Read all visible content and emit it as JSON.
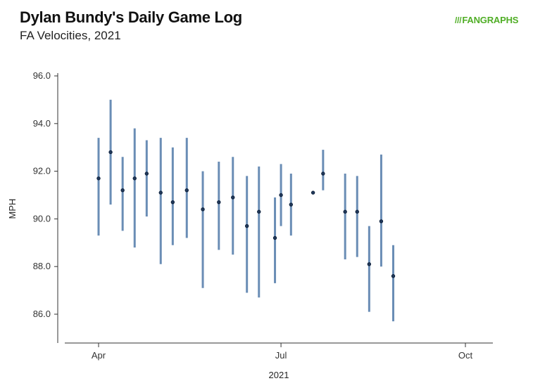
{
  "title": "Dylan Bundy's Daily Game Log",
  "subtitle": "FA Velocities, 2021",
  "brand": {
    "mark": "///",
    "name": "FANGRAPHS",
    "color": "#50ae26"
  },
  "chart_data": {
    "type": "error-bar",
    "ylabel": "MPH",
    "xlabel": "2021",
    "ylim": [
      85,
      96
    ],
    "yticks": [
      "96.0",
      "94.0",
      "92.0",
      "90.0",
      "88.0",
      "86.0"
    ],
    "ytick_values": [
      96,
      94,
      92,
      90,
      88,
      86
    ],
    "xlim": [
      "2021-03-25",
      "2021-10-05"
    ],
    "xticks": [
      {
        "label": "Apr",
        "date": "2021-04-01"
      },
      {
        "label": "Jul",
        "date": "2021-07-01"
      },
      {
        "label": "Oct",
        "date": "2021-10-01"
      }
    ],
    "grid": false,
    "colors": {
      "range": "#6a8db5",
      "point": "#0c1f3a",
      "axis": "#333333"
    },
    "points": [
      {
        "date": "2021-04-01",
        "avg": 91.7,
        "min": 89.3,
        "max": 93.4
      },
      {
        "date": "2021-04-07",
        "avg": 92.8,
        "min": 90.6,
        "max": 95.0
      },
      {
        "date": "2021-04-13",
        "avg": 91.2,
        "min": 89.5,
        "max": 92.6
      },
      {
        "date": "2021-04-19",
        "avg": 91.7,
        "min": 88.8,
        "max": 93.8
      },
      {
        "date": "2021-04-25",
        "avg": 91.9,
        "min": 90.1,
        "max": 93.3
      },
      {
        "date": "2021-05-02",
        "avg": 91.1,
        "min": 88.1,
        "max": 93.4
      },
      {
        "date": "2021-05-08",
        "avg": 90.7,
        "min": 88.9,
        "max": 93.0
      },
      {
        "date": "2021-05-15",
        "avg": 91.2,
        "min": 89.2,
        "max": 93.4
      },
      {
        "date": "2021-05-23",
        "avg": 90.4,
        "min": 87.1,
        "max": 92.0
      },
      {
        "date": "2021-05-31",
        "avg": 90.7,
        "min": 88.7,
        "max": 92.4
      },
      {
        "date": "2021-06-07",
        "avg": 90.9,
        "min": 88.5,
        "max": 92.6
      },
      {
        "date": "2021-06-14",
        "avg": 89.7,
        "min": 86.9,
        "max": 91.8
      },
      {
        "date": "2021-06-20",
        "avg": 90.3,
        "min": 86.7,
        "max": 92.2
      },
      {
        "date": "2021-06-28",
        "avg": 89.2,
        "min": 87.3,
        "max": 90.9
      },
      {
        "date": "2021-07-01",
        "avg": 91.0,
        "min": 89.7,
        "max": 92.3
      },
      {
        "date": "2021-07-06",
        "avg": 90.6,
        "min": 89.3,
        "max": 91.9
      },
      {
        "date": "2021-07-17",
        "avg": 91.1,
        "min": 91.1,
        "max": 91.1
      },
      {
        "date": "2021-07-22",
        "avg": 91.9,
        "min": 91.2,
        "max": 92.9
      },
      {
        "date": "2021-08-02",
        "avg": 90.3,
        "min": 88.3,
        "max": 91.9
      },
      {
        "date": "2021-08-08",
        "avg": 90.3,
        "min": 88.4,
        "max": 91.8
      },
      {
        "date": "2021-08-14",
        "avg": 88.1,
        "min": 86.1,
        "max": 89.7
      },
      {
        "date": "2021-08-20",
        "avg": 89.9,
        "min": 88.0,
        "max": 92.7
      },
      {
        "date": "2021-08-26",
        "avg": 87.6,
        "min": 85.7,
        "max": 88.9
      }
    ]
  }
}
